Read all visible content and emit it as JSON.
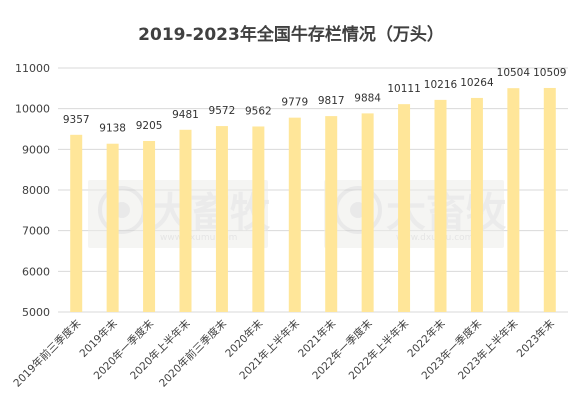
{
  "chart_data": {
    "type": "bar",
    "title": "2019-2023年全国牛存栏情况（万头）",
    "categories": [
      "2019年前三季度末",
      "2019年末",
      "2020年一季度末",
      "2020年上半年末",
      "2020年前三季度末",
      "2020年末",
      "2021年上半年末",
      "2021年末",
      "2022年一季度末",
      "2022年上半年末",
      "2022年末",
      "2023年一季度末",
      "2023年上半年末",
      "2023年末"
    ],
    "values": [
      9357,
      9138,
      9205,
      9481,
      9572,
      9562,
      9779,
      9817,
      9884,
      10111,
      10216,
      10264,
      10504,
      10509
    ],
    "ylim": [
      5000,
      11000
    ],
    "yticks": [
      5000,
      6000,
      7000,
      8000,
      9000,
      10000,
      11000
    ],
    "grid": true,
    "xlabel": "",
    "ylabel": "",
    "colors": {
      "bar": "#FFE699",
      "grid": "#D9D9D9",
      "text": "#404040"
    }
  },
  "watermark": {
    "text": "大畜牧",
    "url": "www.dxumu.com"
  }
}
